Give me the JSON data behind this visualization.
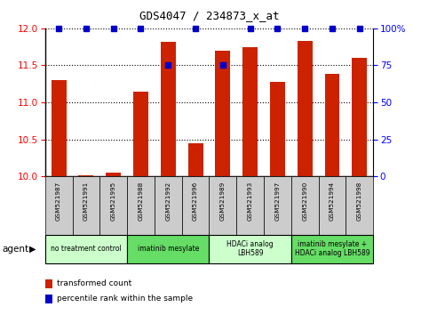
{
  "title": "GDS4047 / 234873_x_at",
  "samples": [
    "GSM521987",
    "GSM521991",
    "GSM521995",
    "GSM521988",
    "GSM521992",
    "GSM521996",
    "GSM521989",
    "GSM521993",
    "GSM521997",
    "GSM521990",
    "GSM521994",
    "GSM521998"
  ],
  "transformed_counts": [
    11.3,
    10.02,
    10.05,
    11.15,
    11.82,
    10.45,
    11.7,
    11.75,
    11.28,
    11.83,
    11.38,
    11.6
  ],
  "percentile_ranks": [
    100,
    100,
    100,
    100,
    75,
    100,
    75,
    100,
    100,
    100,
    100,
    100
  ],
  "groups": [
    {
      "label": "no treatment control",
      "start": 0,
      "end": 3,
      "color": "#ccffcc"
    },
    {
      "label": "imatinib mesylate",
      "start": 3,
      "end": 6,
      "color": "#66dd66"
    },
    {
      "label": "HDACi analog\nLBH589",
      "start": 6,
      "end": 9,
      "color": "#ccffcc"
    },
    {
      "label": "imatinib mesylate +\nHDACi analog LBH589",
      "start": 9,
      "end": 12,
      "color": "#66dd66"
    }
  ],
  "ylim_left": [
    10.0,
    12.0
  ],
  "yticks_left": [
    10.0,
    10.5,
    11.0,
    11.5,
    12.0
  ],
  "ylim_right": [
    0,
    100
  ],
  "yticks_right": [
    0,
    25,
    50,
    75,
    100
  ],
  "bar_color": "#cc2200",
  "dot_color": "#0000cc",
  "bar_width": 0.55,
  "sample_box_color": "#cccccc",
  "legend_items": [
    {
      "color": "#cc2200",
      "label": "transformed count"
    },
    {
      "color": "#0000cc",
      "label": "percentile rank within the sample"
    }
  ]
}
